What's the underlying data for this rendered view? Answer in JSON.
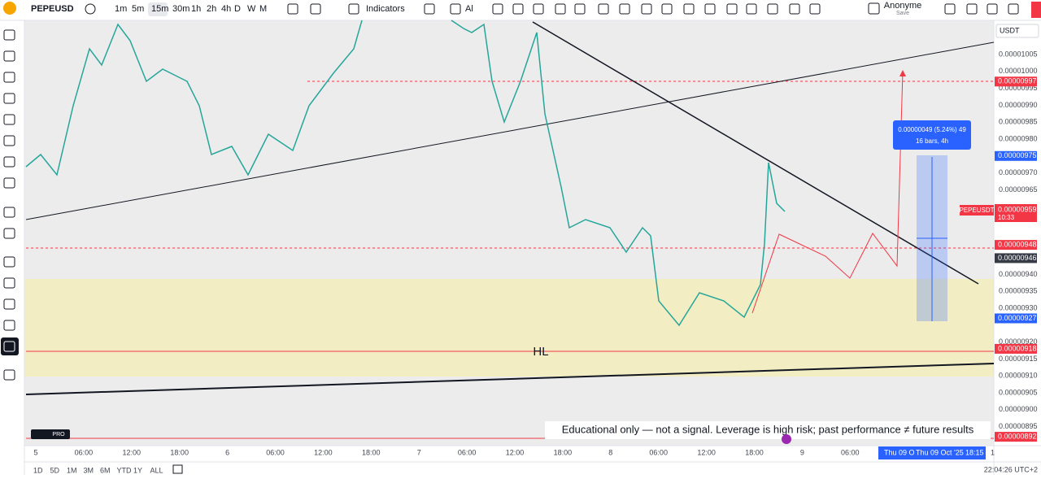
{
  "toolbar": {
    "symbol": "PEPEUSD",
    "timeframes": [
      "1m",
      "5m",
      "15m",
      "30m",
      "1h",
      "2h",
      "4h",
      "D",
      "W",
      "M"
    ],
    "indicators": "Indicators",
    "alert": "Al",
    "user": "Anonyme",
    "save": "Save"
  },
  "price_axis": {
    "currency": "USDT",
    "labels": [
      "0.00001005",
      "0.00001000",
      "0.00000995",
      "0.00000990",
      "0.00000985",
      "0.00000980",
      "0.00000970",
      "0.00000965",
      "0.00000940",
      "0.00000935",
      "0.00000930",
      "0.00000920",
      "0.00000915",
      "0.00000910",
      "0.00000905",
      "0.00000900",
      "0.00000895"
    ]
  },
  "price_badges": [
    {
      "text": "0.00000997",
      "color": "#f23645"
    },
    {
      "text": "0.00000975",
      "color": "#2962ff"
    },
    {
      "text": "0.00000948",
      "color": "#f23645"
    },
    {
      "text": "0.00000946",
      "color": "#363a45"
    },
    {
      "text": "0.00000927",
      "color": "#2962ff"
    },
    {
      "text": "0.00000918",
      "color": "#f23645"
    },
    {
      "text": "0.00000892",
      "color": "#f23645"
    }
  ],
  "symbol_badge": {
    "name": "PEPEUSDT",
    "price": "0.00000959",
    "countdown": "10:33"
  },
  "time_axis": {
    "labels": [
      "5",
      "06:00",
      "12:00",
      "18:00",
      "6",
      "06:00",
      "12:00",
      "18:00",
      "7",
      "06:00",
      "12:00",
      "18:00",
      "8",
      "06:00",
      "12:00",
      "18:00",
      "9",
      "06:00"
    ],
    "cursor_short": "Thu 09 O",
    "cursor_date": "Thu 09 Oct '25",
    "cursor_time": "18:15",
    "extra": "1"
  },
  "measure": {
    "line1": "0.00000049 (5.24%) 49",
    "line2": "16 bars, 4h"
  },
  "annotation": "HL",
  "disclaimer": "Educational only — not a signal. Leverage is high risk; past performance ≠ future results",
  "logo": "PRO",
  "ranges": [
    "1D",
    "5D",
    "1M",
    "3M",
    "6M",
    "YTD",
    "1Y",
    "ALL"
  ],
  "clock": "22:04:26 UTC+2"
}
